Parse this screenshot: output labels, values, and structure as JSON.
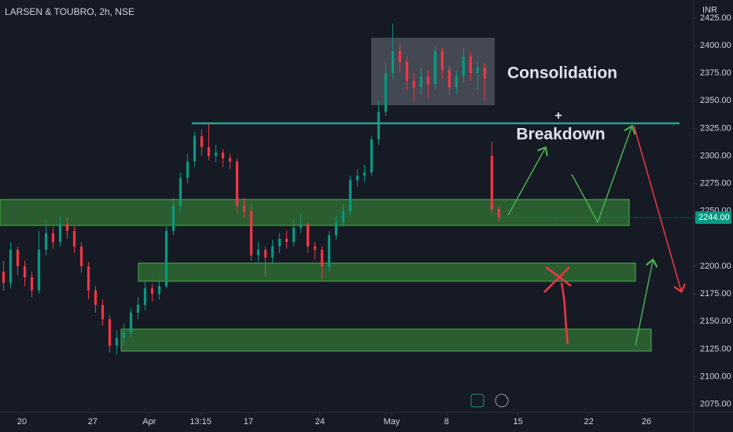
{
  "chart_data": {
    "type": "candlestick",
    "title": "LARSEN & TOUBRO, 2h, NSE",
    "currency": "INR",
    "up_color": "#089981",
    "down_color": "#f23645",
    "x": [
      1,
      3,
      5,
      7,
      9,
      11,
      13,
      15,
      17,
      19,
      21,
      23,
      25,
      27,
      29,
      31,
      33,
      35,
      37,
      39,
      41,
      43,
      45,
      47,
      49,
      51,
      53,
      55,
      57,
      59,
      61,
      63,
      65,
      67,
      69,
      71,
      73,
      75,
      77,
      79,
      81,
      83,
      85,
      87,
      89,
      91,
      93,
      95,
      97,
      99,
      101,
      103,
      105,
      107,
      109,
      111,
      113,
      115,
      117,
      119,
      121,
      123,
      125,
      127,
      129,
      131,
      133,
      135,
      137,
      139,
      141
    ],
    "open": [
      2195,
      2185,
      2215,
      2200,
      2190,
      2178,
      2215,
      2230,
      2222,
      2238,
      2232,
      2218,
      2200,
      2178,
      2165,
      2152,
      2128,
      2135,
      2140,
      2158,
      2165,
      2180,
      2175,
      2182,
      2232,
      2255,
      2280,
      2295,
      2318,
      2308,
      2300,
      2303,
      2298,
      2295,
      2255,
      2250,
      2210,
      2215,
      2208,
      2218,
      2225,
      2222,
      2235,
      2238,
      2218,
      2215,
      2200,
      2228,
      2240,
      2250,
      2278,
      2282,
      2285,
      2315,
      2340,
      2375,
      2395,
      2385,
      2368,
      2362,
      2372,
      2365,
      2395,
      2378,
      2362,
      2372,
      2390,
      2375,
      2380,
      2300,
      2252
    ],
    "high": [
      2205,
      2222,
      2218,
      2205,
      2195,
      2232,
      2242,
      2236,
      2245,
      2244,
      2236,
      2222,
      2204,
      2182,
      2170,
      2156,
      2142,
      2148,
      2162,
      2172,
      2186,
      2184,
      2188,
      2236,
      2262,
      2285,
      2302,
      2322,
      2324,
      2330,
      2310,
      2306,
      2302,
      2298,
      2262,
      2256,
      2222,
      2218,
      2224,
      2230,
      2232,
      2242,
      2248,
      2240,
      2222,
      2218,
      2232,
      2246,
      2256,
      2282,
      2288,
      2292,
      2318,
      2350,
      2385,
      2420,
      2402,
      2390,
      2375,
      2380,
      2378,
      2400,
      2398,
      2382,
      2378,
      2398,
      2394,
      2386,
      2384,
      2313,
      2255
    ],
    "low": [
      2178,
      2180,
      2192,
      2182,
      2172,
      2175,
      2210,
      2216,
      2218,
      2225,
      2212,
      2194,
      2170,
      2158,
      2146,
      2122,
      2120,
      2128,
      2136,
      2152,
      2160,
      2168,
      2170,
      2180,
      2228,
      2250,
      2275,
      2290,
      2300,
      2296,
      2294,
      2290,
      2288,
      2248,
      2244,
      2205,
      2204,
      2190,
      2203,
      2212,
      2216,
      2218,
      2230,
      2212,
      2206,
      2188,
      2196,
      2224,
      2236,
      2246,
      2272,
      2276,
      2282,
      2310,
      2336,
      2370,
      2376,
      2360,
      2350,
      2356,
      2352,
      2360,
      2370,
      2355,
      2356,
      2366,
      2368,
      2360,
      2350,
      2248,
      2240
    ],
    "close": [
      2185,
      2215,
      2200,
      2190,
      2178,
      2215,
      2230,
      2222,
      2238,
      2232,
      2218,
      2200,
      2178,
      2165,
      2152,
      2128,
      2135,
      2140,
      2158,
      2165,
      2180,
      2175,
      2182,
      2232,
      2255,
      2280,
      2295,
      2318,
      2308,
      2300,
      2303,
      2298,
      2295,
      2255,
      2250,
      2210,
      2215,
      2208,
      2218,
      2225,
      2222,
      2235,
      2238,
      2218,
      2215,
      2200,
      2228,
      2240,
      2250,
      2278,
      2282,
      2285,
      2315,
      2340,
      2375,
      2395,
      2385,
      2368,
      2362,
      2372,
      2365,
      2395,
      2378,
      2362,
      2372,
      2390,
      2375,
      2380,
      2370,
      2252,
      2244
    ],
    "last_price_label": "2244.00",
    "xlim": [
      0,
      195.6
    ],
    "ylim": [
      2067.6,
      2441.3
    ],
    "yticks": [
      {
        "value": 2075,
        "label": "2075.00"
      },
      {
        "value": 2100,
        "label": "2100.00"
      },
      {
        "value": 2125,
        "label": "2125.00"
      },
      {
        "value": 2150,
        "label": "2150.00"
      },
      {
        "value": 2175,
        "label": "2175.00"
      },
      {
        "value": 2200,
        "label": "2200.00"
      },
      {
        "value": 2250,
        "label": "2250.00"
      },
      {
        "value": 2275,
        "label": "2275.00"
      },
      {
        "value": 2300,
        "label": "2300.00"
      },
      {
        "value": 2325,
        "label": "2325.00"
      },
      {
        "value": 2350,
        "label": "2350.00"
      },
      {
        "value": 2375,
        "label": "2375.00"
      },
      {
        "value": 2400,
        "label": "2400.00"
      },
      {
        "value": 2425,
        "label": "2425.00"
      }
    ],
    "xticks": [
      {
        "value": 6.2,
        "label": "20"
      },
      {
        "value": 26.2,
        "label": "27"
      },
      {
        "value": 42.2,
        "label": "Apr"
      },
      {
        "value": 56.7,
        "label": "13:15"
      },
      {
        "value": 70.2,
        "label": "17"
      },
      {
        "value": 90.4,
        "label": "24"
      },
      {
        "value": 110.7,
        "label": "May"
      },
      {
        "value": 126.2,
        "label": "8"
      },
      {
        "value": 146.4,
        "label": "15"
      },
      {
        "value": 166.4,
        "label": "22"
      },
      {
        "value": 182.7,
        "label": "26"
      }
    ],
    "grid": false,
    "annotations": [
      "Consolidation",
      "+",
      "Breakdown"
    ]
  }
}
